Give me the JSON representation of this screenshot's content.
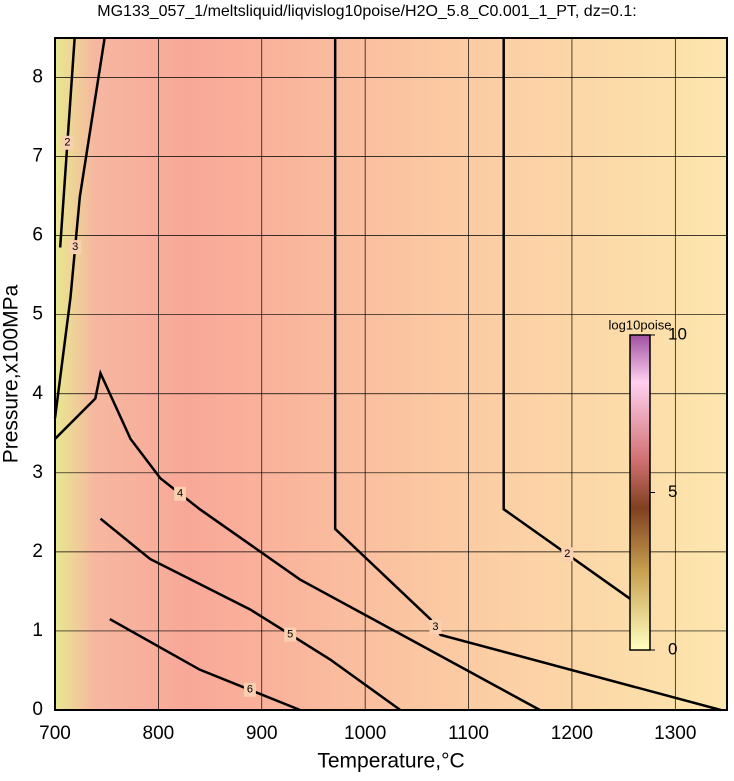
{
  "chart_data": {
    "type": "contour",
    "title": "MG133_057_1/meltsliquid/liqvislog10poise/H2O_5.8_C0.001_1_PT, dz=0.1:",
    "x_label": "Temperature,°C",
    "y_label": "Pressure,x100MPa",
    "xlim": [
      700,
      1350
    ],
    "ylim": [
      0,
      8.5
    ],
    "xticks": [
      700,
      800,
      900,
      1000,
      1100,
      1200,
      1300
    ],
    "yticks": [
      0,
      1,
      2,
      3,
      4,
      5,
      6,
      7,
      8
    ],
    "grid": true,
    "contours": [
      {
        "level": 3,
        "x": [
          971,
          971,
          1063,
          1073,
          1344
        ],
        "y": [
          8.5,
          2.29,
          1.15,
          0.95,
          0
        ]
      },
      {
        "level": 2,
        "x": [
          1134,
          1134,
          1257
        ],
        "y": [
          8.5,
          2.54,
          1.4
        ]
      },
      {
        "level": 4,
        "x": [
          700,
          739,
          744,
          773,
          802,
          840,
          937,
          1044,
          1169
        ],
        "y": [
          3.43,
          3.94,
          4.26,
          3.43,
          2.93,
          2.54,
          1.65,
          0.89,
          0
        ]
      },
      {
        "level": 5,
        "x": [
          744,
          792,
          889,
          966,
          1034
        ],
        "y": [
          2.42,
          1.91,
          1.27,
          0.64,
          0
        ]
      },
      {
        "level": 6,
        "x": [
          753,
          840,
          937
        ],
        "y": [
          1.15,
          0.51,
          0
        ]
      },
      {
        "level": 3,
        "x": [
          748,
          724,
          715,
          700
        ],
        "y": [
          8.5,
          6.49,
          5.22,
          3.69
        ]
      },
      {
        "level": 2,
        "x": [
          719,
          705
        ],
        "y": [
          8.5,
          5.85
        ]
      }
    ],
    "colorbar": {
      "title": "log10poise",
      "lim": [
        0,
        10
      ],
      "ticks": [
        0,
        5,
        10
      ]
    }
  }
}
